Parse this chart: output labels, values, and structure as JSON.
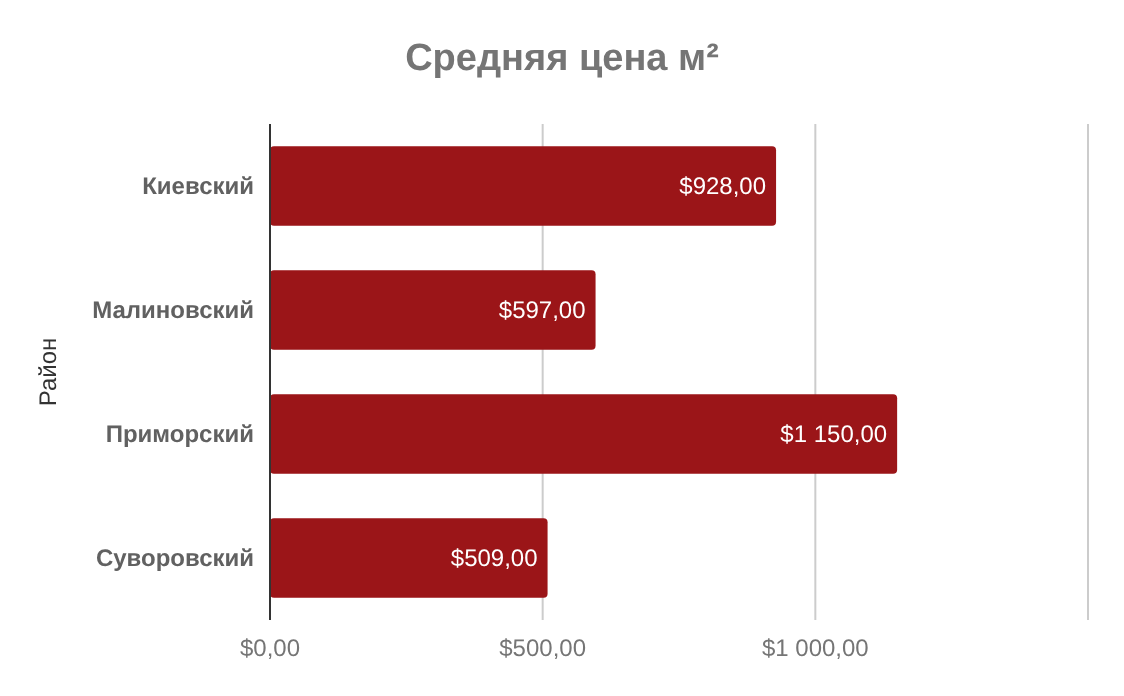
{
  "chart_data": {
    "type": "bar",
    "orientation": "horizontal",
    "title": "Средняя цена м²",
    "ylabel": "Район",
    "categories": [
      "Киевский",
      "Малиновский",
      "Приморский",
      "Суворовский"
    ],
    "values": [
      928,
      597,
      1150,
      509
    ],
    "color": "#9b1518",
    "value_labels": [
      "$928,00",
      "$597,00",
      "$1 150,00",
      "$509,00"
    ],
    "xlim": [
      0,
      1500
    ],
    "xticks": [
      {
        "value": 0,
        "label": "$0,00"
      },
      {
        "value": 500,
        "label": "$500,00"
      },
      {
        "value": 1000,
        "label": "$1 000,00"
      },
      {
        "value": 1500,
        "label": null
      }
    ],
    "grid": "x"
  }
}
